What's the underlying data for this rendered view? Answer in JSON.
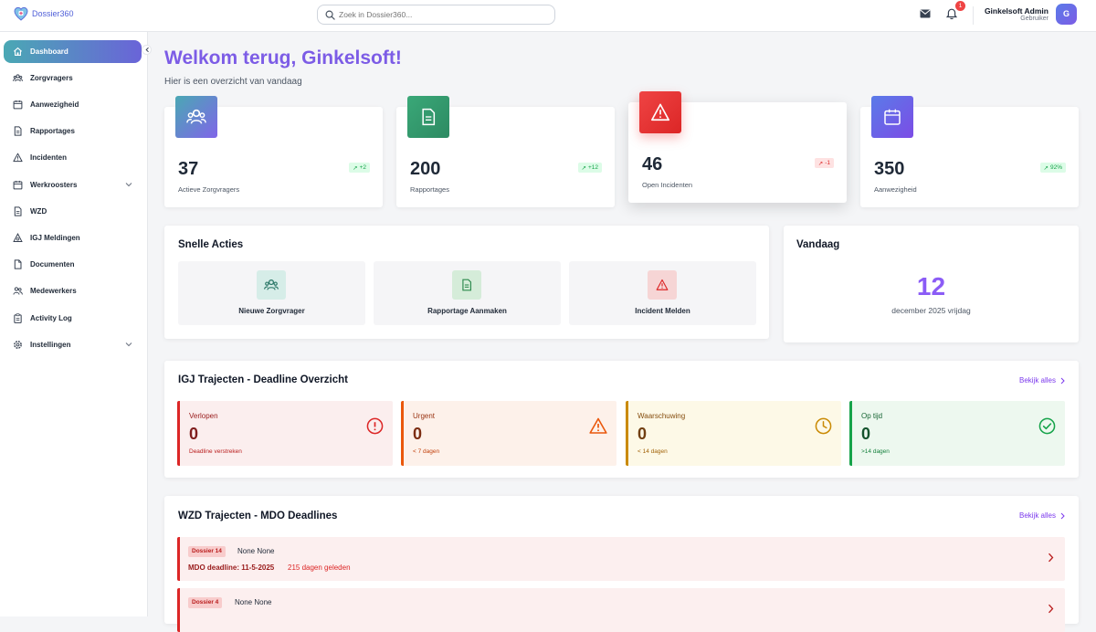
{
  "app": {
    "name": "Dossier360"
  },
  "header": {
    "search_placeholder": "Zoek in Dossier360...",
    "notifications_count": "1",
    "user": {
      "name": "Ginkelsoft Admin",
      "role": "Gebruiker",
      "initial": "G"
    }
  },
  "sidebar": {
    "items": [
      {
        "label": "Dashboard",
        "icon": "home-icon",
        "active": true
      },
      {
        "label": "Zorgvragers",
        "icon": "users-icon"
      },
      {
        "label": "Aanwezigheid",
        "icon": "calendar-icon"
      },
      {
        "label": "Rapportages",
        "icon": "document-icon"
      },
      {
        "label": "Incidenten",
        "icon": "warning-icon"
      },
      {
        "label": "Werkroosters",
        "icon": "calendar-icon",
        "expandable": true
      },
      {
        "label": "WZD",
        "icon": "document-icon"
      },
      {
        "label": "IGJ Meldingen",
        "icon": "alert-bell-icon"
      },
      {
        "label": "Documenten",
        "icon": "file-icon"
      },
      {
        "label": "Medewerkers",
        "icon": "people-icon"
      },
      {
        "label": "Activity Log",
        "icon": "clipboard-icon"
      },
      {
        "label": "Instellingen",
        "icon": "gear-icon",
        "expandable": true
      }
    ]
  },
  "main": {
    "welcome": "Welkom terug, Ginkelsoft!",
    "subtitle": "Hier is een overzicht van vandaag",
    "stats": [
      {
        "value": "37",
        "label": "Actieve Zorgvragers",
        "trend": "+2",
        "trend_dir": "up",
        "icon": "users-icon"
      },
      {
        "value": "200",
        "label": "Rapportages",
        "trend": "+12",
        "trend_dir": "up",
        "icon": "document-icon"
      },
      {
        "value": "46",
        "label": "Open Incidenten",
        "trend": "-1",
        "trend_dir": "down",
        "icon": "warning-icon"
      },
      {
        "value": "350",
        "label": "Aanwezigheid",
        "trend": "92%",
        "trend_dir": "up",
        "icon": "calendar-icon"
      }
    ],
    "quick_actions": {
      "title": "Snelle Acties",
      "items": [
        {
          "label": "Nieuwe Zorgvrager",
          "icon": "users-icon"
        },
        {
          "label": "Rapportage Aanmaken",
          "icon": "document-icon"
        },
        {
          "label": "Incident Melden",
          "icon": "warning-icon"
        }
      ]
    },
    "today": {
      "title": "Vandaag",
      "day": "12",
      "date_text": "december 2025 vrijdag"
    },
    "igj": {
      "title": "IGJ Trajecten - Deadline Overzicht",
      "link": "Bekijk alles",
      "cards": [
        {
          "label": "Verlopen",
          "value": "0",
          "sub": "Deadline verstreken",
          "icon": "alert-circle-icon",
          "color": "#dc2626"
        },
        {
          "label": "Urgent",
          "value": "0",
          "sub": "< 7 dagen",
          "icon": "warning-icon",
          "color": "#ea580c"
        },
        {
          "label": "Waarschuwing",
          "value": "0",
          "sub": "< 14 dagen",
          "icon": "clock-icon",
          "color": "#ca8a04"
        },
        {
          "label": "Op tijd",
          "value": "0",
          "sub": ">14 dagen",
          "icon": "check-circle-icon",
          "color": "#16a34a"
        }
      ]
    },
    "wzd": {
      "title": "WZD Trajecten - MDO Deadlines",
      "link": "Bekijk alles",
      "rows": [
        {
          "tag": "Dossier 14",
          "name": "None None",
          "deadline": "MDO deadline: 11-5-2025",
          "ago": "215 dagen geleden"
        },
        {
          "tag": "Dossier 4",
          "name": "None None"
        }
      ]
    }
  },
  "colors": {
    "accent": "#7c5ce6",
    "danger": "#dc2626",
    "success": "#16a34a"
  }
}
